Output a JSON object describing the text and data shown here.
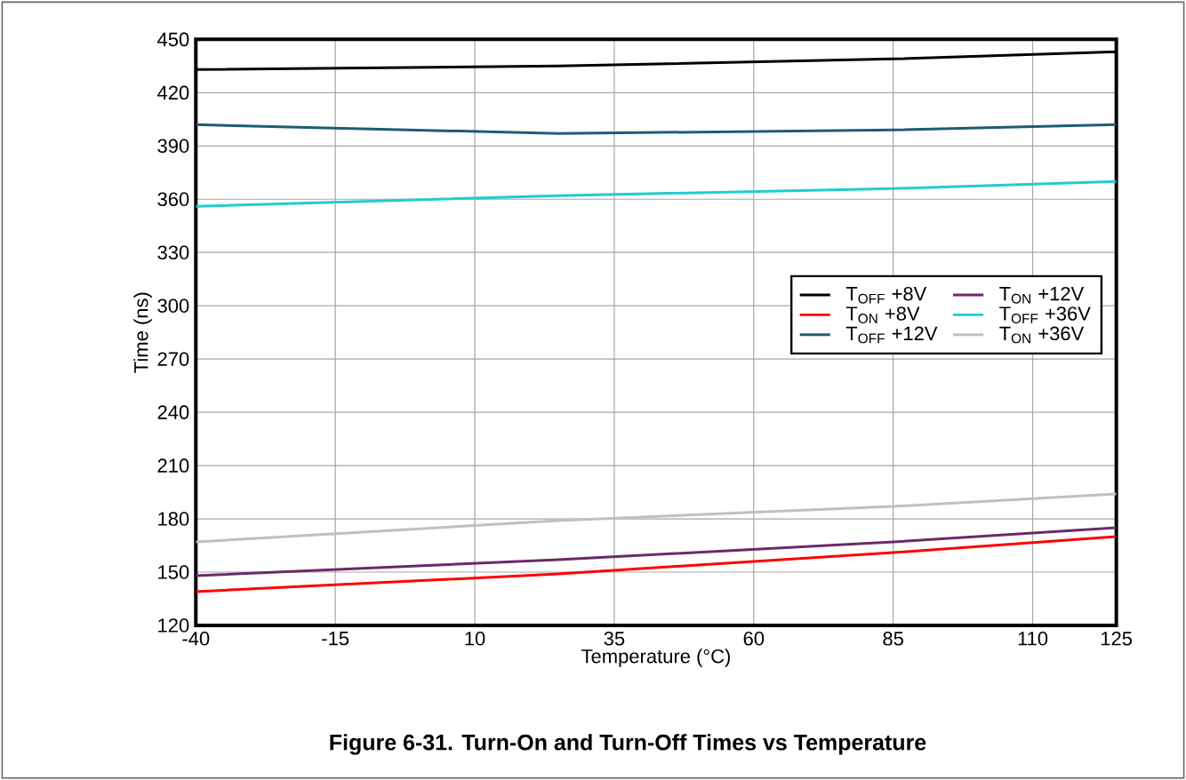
{
  "chart_data": {
    "type": "line",
    "title": "**Figure 6-31. Turn-On and Turn-Off Times vs Temperature**",
    "xlabel": "Temperature (°C)",
    "ylabel": "Time (ns)",
    "x": [
      -40,
      25,
      85,
      125
    ],
    "series": [
      {
        "name": "T$_{OFF}$ +8V",
        "color": "#000000",
        "values": [
          433,
          435,
          439,
          443
        ]
      },
      {
        "name": "T$_{ON}$ +8V",
        "color": "#ff0000",
        "values": [
          139,
          149,
          161,
          170
        ]
      },
      {
        "name": "T$_{OFF}$ +12V",
        "color": "#1f5b78",
        "values": [
          402,
          397,
          399,
          402
        ]
      },
      {
        "name": "T$_{ON}$ +12V",
        "color": "#6a2a6a",
        "values": [
          148,
          157,
          167,
          175
        ]
      },
      {
        "name": "T$_{OFF}$ +36V",
        "color": "#22cccc",
        "values": [
          356,
          362,
          366,
          370
        ]
      },
      {
        "name": "T$_{ON}$ +36V",
        "color": "#c0c0c0",
        "values": [
          167,
          179,
          187,
          194
        ]
      }
    ],
    "xlim": [
      -40,
      125
    ],
    "xticks": [
      -40,
      -15,
      10,
      35,
      60,
      85,
      110,
      125
    ],
    "ylim": [
      120,
      450
    ],
    "yticks": [
      120,
      150,
      180,
      210,
      240,
      270,
      300,
      330,
      360,
      390,
      420,
      450
    ],
    "grid": true,
    "legend": "right",
    "marker": "none",
    "line_style": "solid"
  }
}
